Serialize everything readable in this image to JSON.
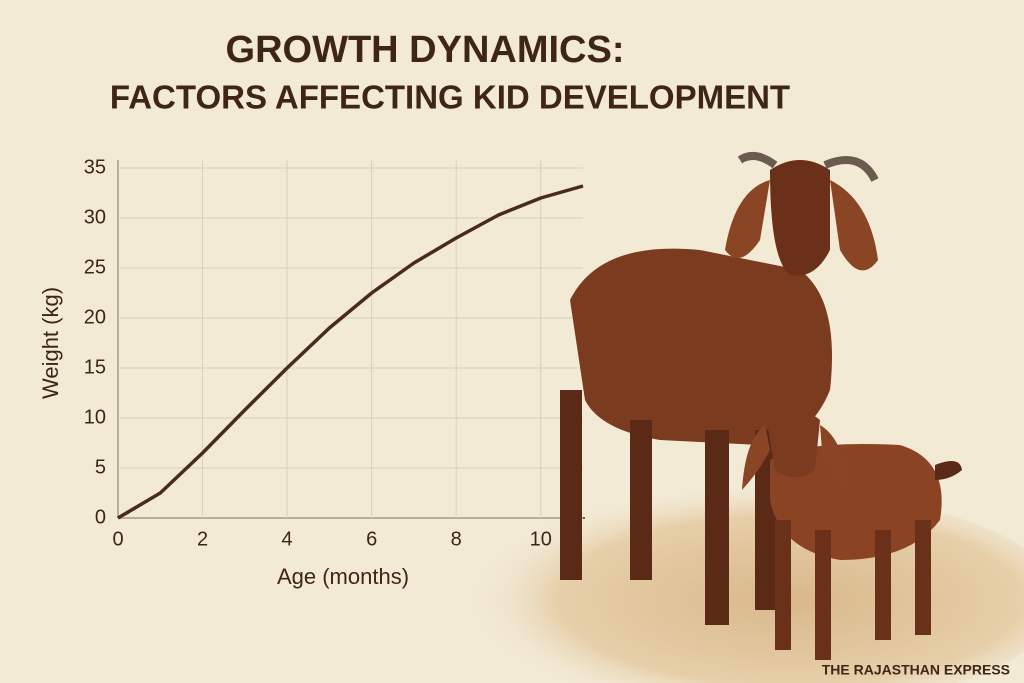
{
  "chart_data": {
    "type": "line",
    "title": "GROWTH DYNAMICS:",
    "subtitle": "FACTORS AFFECTING KID DEVELOPMENT",
    "x_label": "Age (months)",
    "y_label": "Weight (kg)",
    "x": [
      0,
      1,
      2,
      3,
      4,
      5,
      6,
      7,
      8,
      9,
      10,
      11
    ],
    "values": [
      0,
      2.5,
      6.5,
      10.8,
      15,
      19,
      22.5,
      25.5,
      28,
      30.3,
      32,
      33.2
    ],
    "color": "#4a2a1c",
    "xlim": [
      0,
      11
    ],
    "xticks": [
      0,
      2,
      4,
      6,
      8,
      10
    ],
    "ylim": [
      0,
      35
    ],
    "yticks": [
      0,
      5,
      10,
      15,
      20,
      25,
      30,
      35
    ],
    "grid": true,
    "source": "THE RAJASTHAN EXPRESS"
  }
}
